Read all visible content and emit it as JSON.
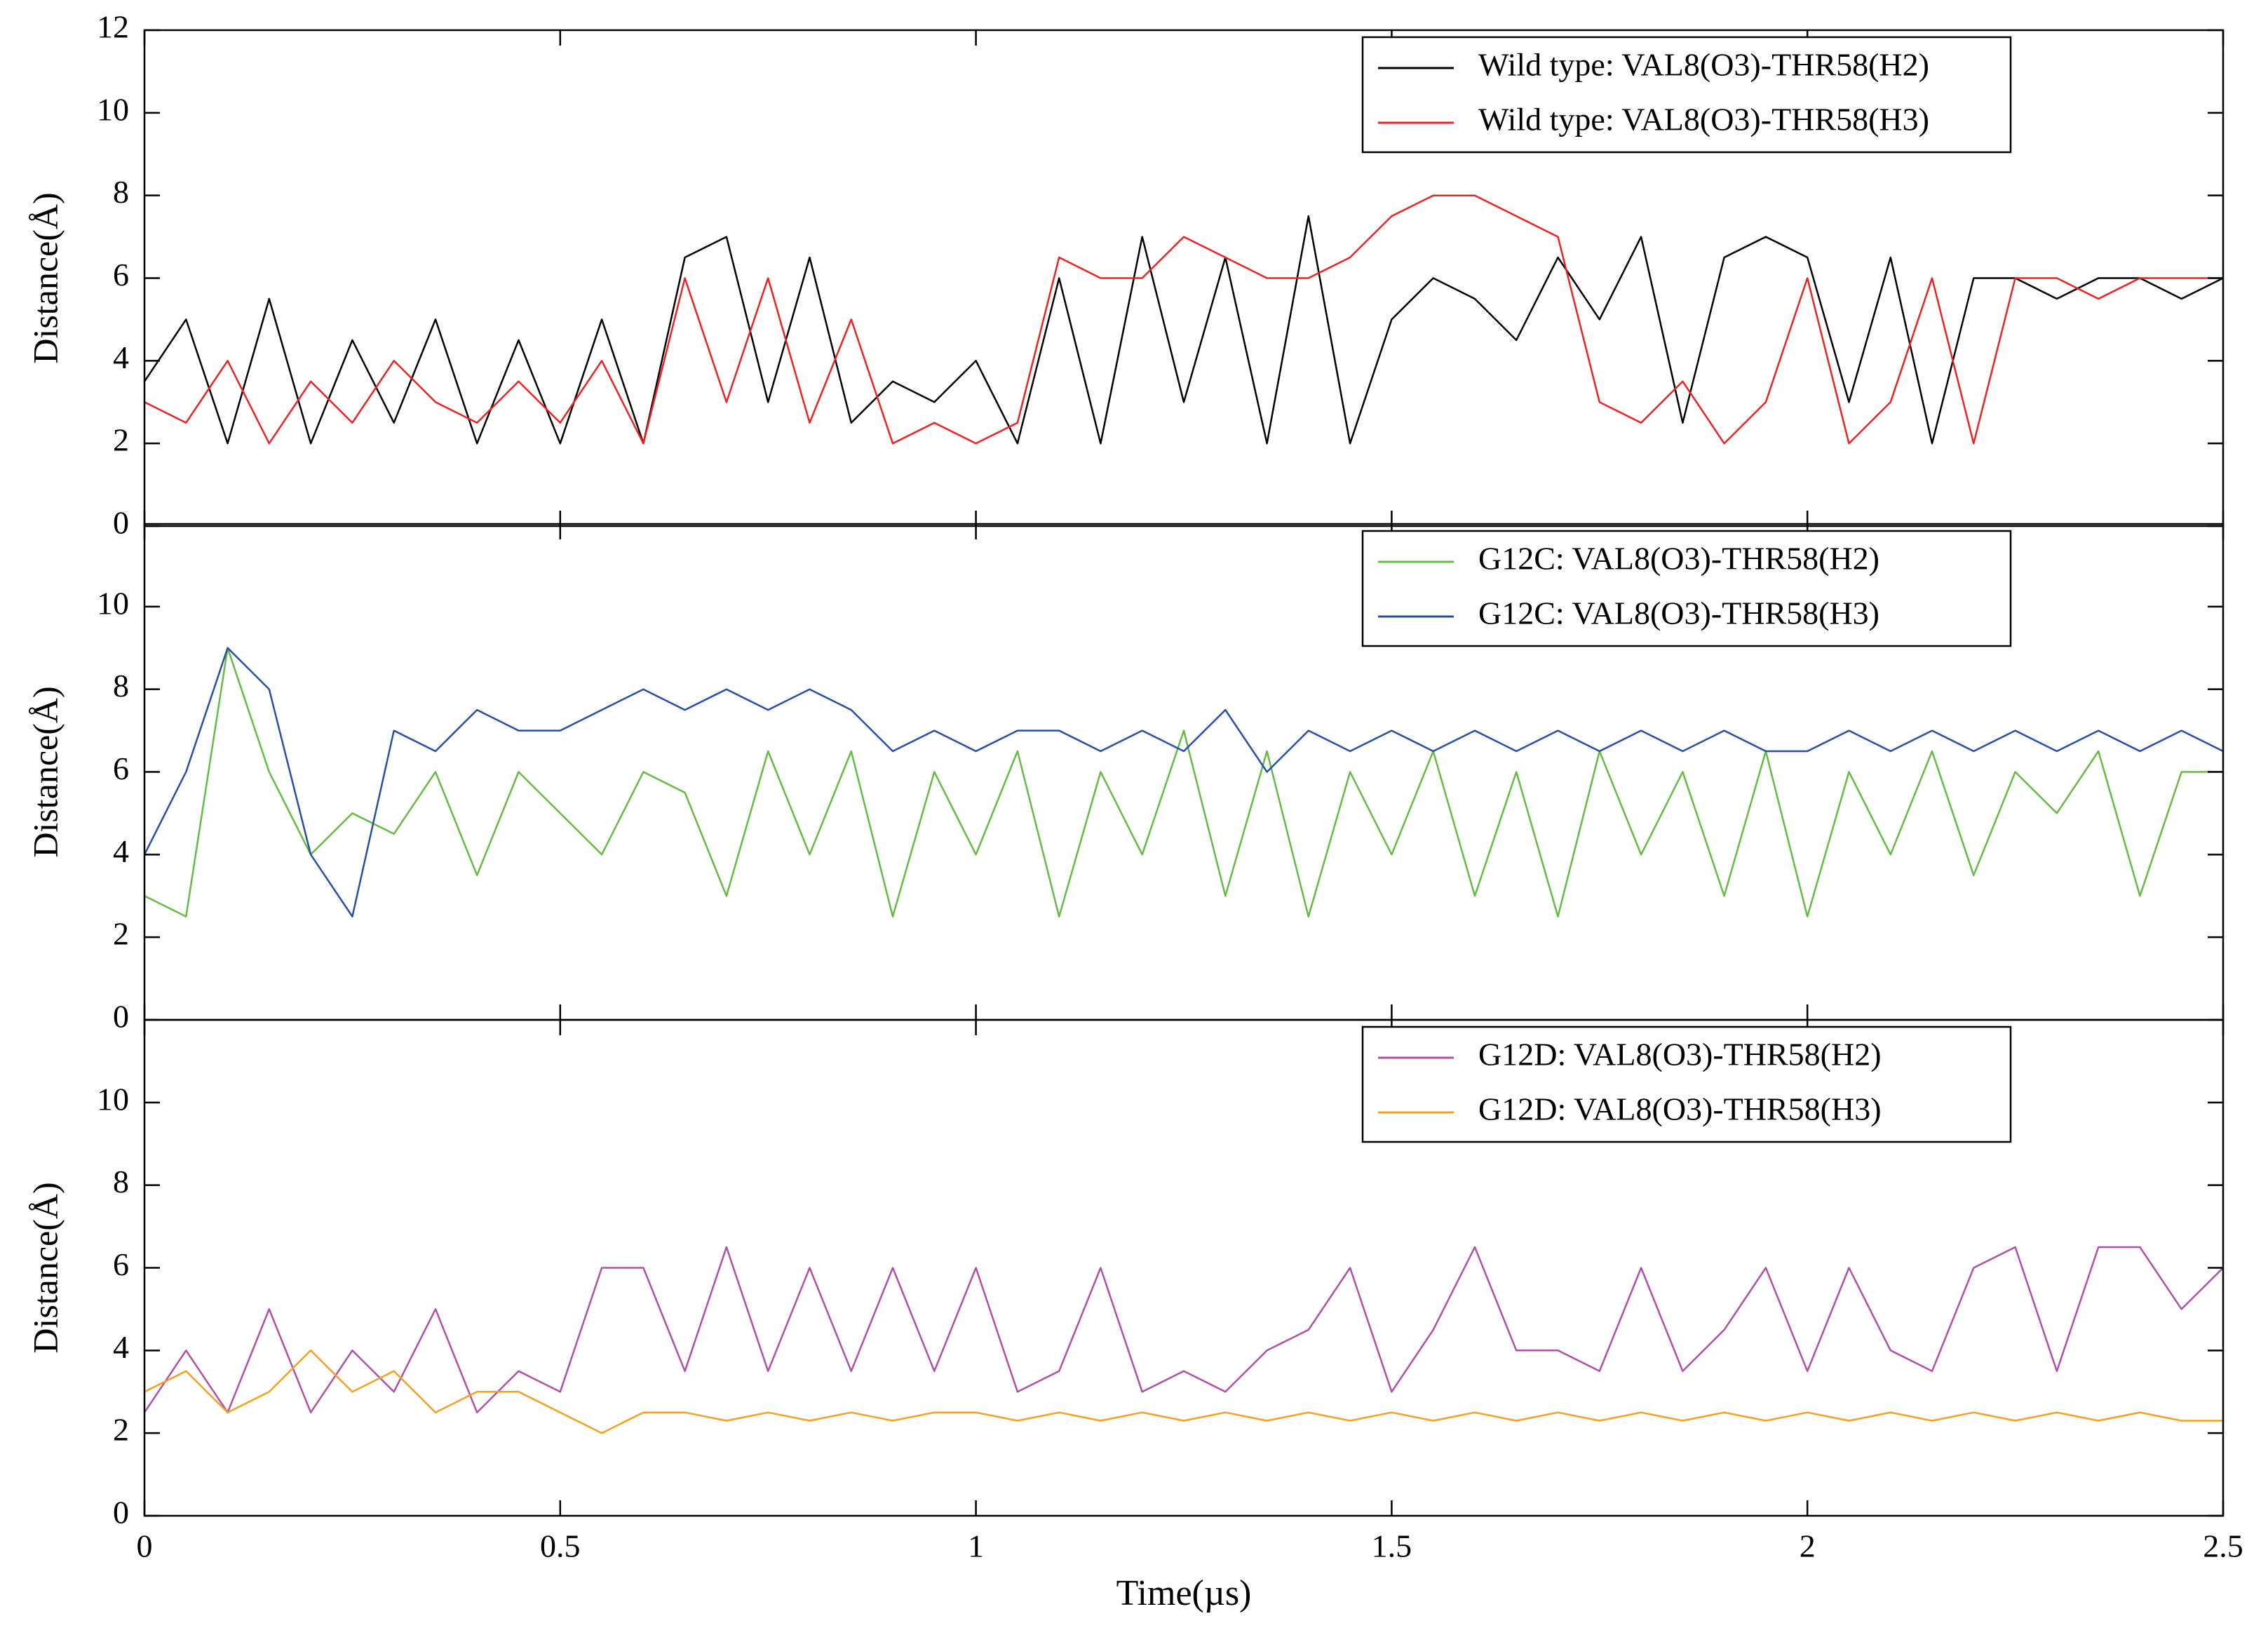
{
  "chart_data": [
    {
      "type": "line",
      "ylabel": "Distance(Å)",
      "legend": "upper right",
      "xlim": [
        0,
        2.5
      ],
      "xticks": [
        0,
        0.5,
        1,
        1.5,
        2,
        2.5
      ],
      "ylim": [
        0,
        12
      ],
      "yticks": [
        0,
        2,
        4,
        6,
        8,
        10,
        12
      ],
      "x": [
        0,
        0.05,
        0.1,
        0.15,
        0.2,
        0.25,
        0.3,
        0.35,
        0.4,
        0.45,
        0.5,
        0.55,
        0.6,
        0.65,
        0.7,
        0.75,
        0.8,
        0.85,
        0.9,
        0.95,
        1,
        1.05,
        1.1,
        1.15,
        1.2,
        1.25,
        1.3,
        1.35,
        1.4,
        1.45,
        1.5,
        1.55,
        1.6,
        1.65,
        1.7,
        1.75,
        1.8,
        1.85,
        1.9,
        1.95,
        2,
        2.05,
        2.1,
        2.15,
        2.2,
        2.25,
        2.3,
        2.35,
        2.4,
        2.45,
        2.5
      ],
      "series": [
        {
          "name": "Wild type: VAL8(O3)-THR58(H2)",
          "color": "#000000",
          "values": [
            3.5,
            5,
            2,
            5.5,
            2,
            4.5,
            2.5,
            5,
            2,
            4.5,
            2,
            5,
            2,
            6.5,
            7,
            3,
            6.5,
            2.5,
            3.5,
            3,
            4,
            2,
            6,
            2,
            7,
            3,
            6.5,
            2,
            7.5,
            2,
            5,
            6,
            5.5,
            4.5,
            6.5,
            5,
            7,
            2.5,
            6.5,
            7,
            6.5,
            3,
            6.5,
            2,
            6,
            6,
            5.5,
            6,
            6,
            5.5,
            6
          ]
        },
        {
          "name": "Wild type: VAL8(O3)-THR58(H3)",
          "color": "#ee2222",
          "values": [
            3,
            2.5,
            4,
            2,
            3.5,
            2.5,
            4,
            3,
            2.5,
            3.5,
            2.5,
            4,
            2,
            6,
            3,
            6,
            2.5,
            5,
            2,
            2.5,
            2,
            2.5,
            6.5,
            6,
            6,
            7,
            6.5,
            6,
            6,
            6.5,
            7.5,
            8,
            8,
            7.5,
            7,
            3,
            2.5,
            3.5,
            2,
            3,
            6,
            2,
            3,
            6,
            2,
            6,
            6,
            5.5,
            6,
            6,
            6
          ]
        }
      ]
    },
    {
      "type": "line",
      "ylabel": "Distance(Å)",
      "legend": "upper right",
      "xlim": [
        0,
        2.5
      ],
      "xticks": [
        0,
        0.5,
        1,
        1.5,
        2,
        2.5
      ],
      "ylim": [
        0,
        12
      ],
      "yticks": [
        0,
        2,
        4,
        6,
        8,
        10
      ],
      "x": [
        0,
        0.05,
        0.1,
        0.15,
        0.2,
        0.25,
        0.3,
        0.35,
        0.4,
        0.45,
        0.5,
        0.55,
        0.6,
        0.65,
        0.7,
        0.75,
        0.8,
        0.85,
        0.9,
        0.95,
        1,
        1.05,
        1.1,
        1.15,
        1.2,
        1.25,
        1.3,
        1.35,
        1.4,
        1.45,
        1.5,
        1.55,
        1.6,
        1.65,
        1.7,
        1.75,
        1.8,
        1.85,
        1.9,
        1.95,
        2,
        2.05,
        2.1,
        2.15,
        2.2,
        2.25,
        2.3,
        2.35,
        2.4,
        2.45,
        2.5
      ],
      "series": [
        {
          "name": "G12C: VAL8(O3)-THR58(H2)",
          "color": "#66bb44",
          "values": [
            3,
            2.5,
            9,
            6,
            4,
            5,
            4.5,
            6,
            3.5,
            6,
            5,
            4,
            6,
            5.5,
            3,
            6.5,
            4,
            6.5,
            2.5,
            6,
            4,
            6.5,
            2.5,
            6,
            4,
            7,
            3,
            6.5,
            2.5,
            6,
            4,
            6.5,
            3,
            6,
            2.5,
            6.5,
            4,
            6,
            3,
            6.5,
            2.5,
            6,
            4,
            6.5,
            3.5,
            6,
            5,
            6.5,
            3,
            6,
            6
          ]
        },
        {
          "name": "G12C: VAL8(O3)-THR58(H3)",
          "color": "#2a4ea6",
          "values": [
            4,
            6,
            9,
            8,
            4,
            2.5,
            7,
            6.5,
            7.5,
            7,
            7,
            7.5,
            8,
            7.5,
            8,
            7.5,
            8,
            7.5,
            6.5,
            7,
            6.5,
            7,
            7,
            6.5,
            7,
            6.5,
            7.5,
            6,
            7,
            6.5,
            7,
            6.5,
            7,
            6.5,
            7,
            6.5,
            7,
            6.5,
            7,
            6.5,
            6.5,
            7,
            6.5,
            7,
            6.5,
            7,
            6.5,
            7,
            6.5,
            7,
            6.5
          ]
        }
      ]
    },
    {
      "type": "line",
      "ylabel": "Distance(Å)",
      "xlabel": "Time(µs)",
      "legend": "upper right",
      "xlim": [
        0,
        2.5
      ],
      "xticks": [
        0,
        0.5,
        1,
        1.5,
        2,
        2.5
      ],
      "ylim": [
        0,
        12
      ],
      "yticks": [
        0,
        2,
        4,
        6,
        8,
        10
      ],
      "x": [
        0,
        0.05,
        0.1,
        0.15,
        0.2,
        0.25,
        0.3,
        0.35,
        0.4,
        0.45,
        0.5,
        0.55,
        0.6,
        0.65,
        0.7,
        0.75,
        0.8,
        0.85,
        0.9,
        0.95,
        1,
        1.05,
        1.1,
        1.15,
        1.2,
        1.25,
        1.3,
        1.35,
        1.4,
        1.45,
        1.5,
        1.55,
        1.6,
        1.65,
        1.7,
        1.75,
        1.8,
        1.85,
        1.9,
        1.95,
        2,
        2.05,
        2.1,
        2.15,
        2.2,
        2.25,
        2.3,
        2.35,
        2.4,
        2.45,
        2.5
      ],
      "series": [
        {
          "name": "G12D: VAL8(O3)-THR58(H2)",
          "color": "#b050a8",
          "values": [
            2.5,
            4,
            2.5,
            5,
            2.5,
            4,
            3,
            5,
            2.5,
            3.5,
            3,
            6,
            6,
            3.5,
            6.5,
            3.5,
            6,
            3.5,
            6,
            3.5,
            6,
            3,
            3.5,
            6,
            3,
            3.5,
            3,
            4,
            4.5,
            6,
            3,
            4.5,
            6.5,
            4,
            4,
            3.5,
            6,
            3.5,
            4.5,
            6,
            3.5,
            6,
            4,
            3.5,
            6,
            6.5,
            3.5,
            6.5,
            6.5,
            5,
            6
          ]
        },
        {
          "name": "G12D: VAL8(O3)-THR58(H3)",
          "color": "#f5a020",
          "values": [
            3,
            3.5,
            2.5,
            3,
            4,
            3,
            3.5,
            2.5,
            3,
            3,
            2.5,
            2,
            2.5,
            2.5,
            2.3,
            2.5,
            2.3,
            2.5,
            2.3,
            2.5,
            2.5,
            2.3,
            2.5,
            2.3,
            2.5,
            2.3,
            2.5,
            2.3,
            2.5,
            2.3,
            2.5,
            2.3,
            2.5,
            2.3,
            2.5,
            2.3,
            2.5,
            2.3,
            2.5,
            2.3,
            2.5,
            2.3,
            2.5,
            2.3,
            2.5,
            2.3,
            2.5,
            2.3,
            2.5,
            2.3,
            2.3
          ]
        }
      ]
    }
  ]
}
